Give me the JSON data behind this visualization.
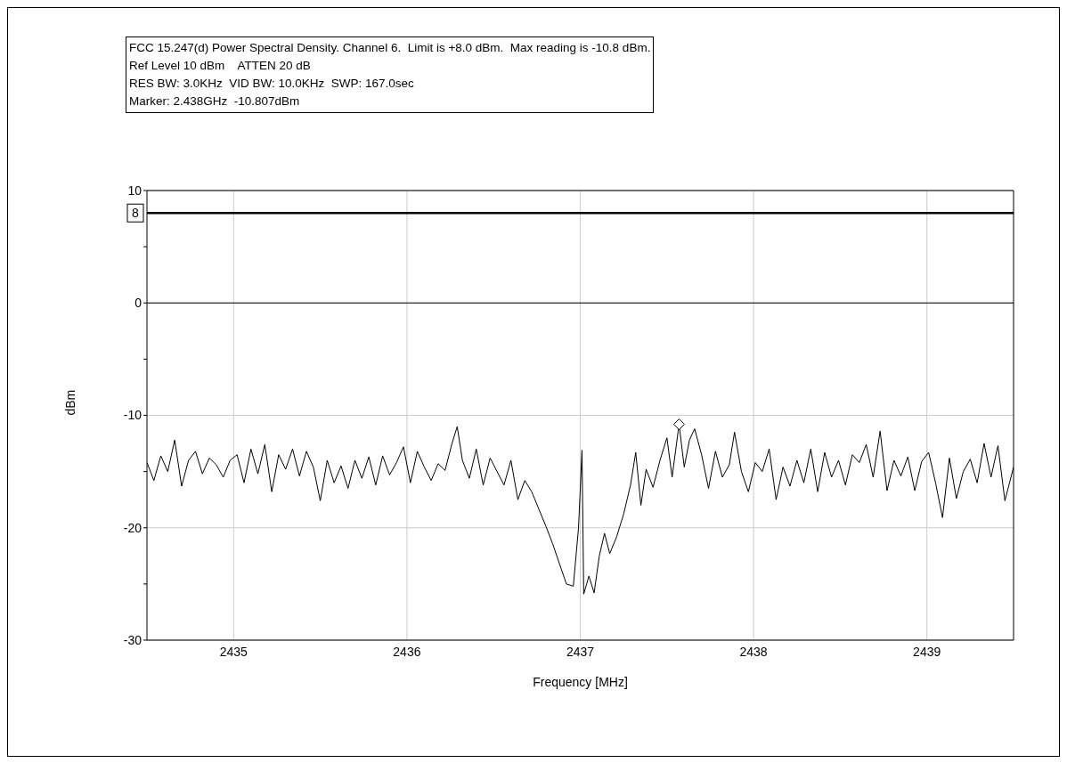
{
  "chart_data": {
    "type": "line",
    "annotations": [
      "FCC 15.247(d) Power Spectral Density. Channel 6.  Limit is +8.0 dBm.  Max reading is -10.8 dBm.",
      "Ref Level 10 dBm    ATTEN 20 dB",
      "RES BW: 3.0KHz  VID BW: 10.0KHz  SWP: 167.0sec",
      "Marker: 2.438GHz  -10.807dBm"
    ],
    "xlabel": "Frequency [MHz]",
    "ylabel": "dBm",
    "xlim": [
      2434.5,
      2439.5
    ],
    "xticks": [
      2435,
      2436,
      2437,
      2438,
      2439
    ],
    "ylim": [
      -30,
      10
    ],
    "yticks": [
      10,
      {
        "value": 5,
        "label": null
      },
      0,
      {
        "value": -5,
        "label": null
      },
      -10,
      {
        "value": -15,
        "label": null
      },
      -20,
      {
        "value": -25,
        "label": null
      },
      -30
    ],
    "grid": true,
    "marker": "none",
    "line_style": "solid",
    "ref_lines": [
      {
        "axis": "y",
        "value": 8,
        "label": "8",
        "color": "#000000"
      },
      {
        "axis": "y",
        "value": 0,
        "color": "#000000"
      }
    ],
    "series": [
      {
        "color": "#000000",
        "x": [
          2434.5,
          2434.54,
          2434.58,
          2434.62,
          2434.66,
          2434.7,
          2434.74,
          2434.78,
          2434.82,
          2434.86,
          2434.9,
          2434.94,
          2434.98,
          2435.02,
          2435.06,
          2435.1,
          2435.14,
          2435.18,
          2435.22,
          2435.26,
          2435.3,
          2435.34,
          2435.38,
          2435.42,
          2435.46,
          2435.5,
          2435.54,
          2435.58,
          2435.62,
          2435.66,
          2435.7,
          2435.74,
          2435.78,
          2435.82,
          2435.86,
          2435.9,
          2435.94,
          2435.98,
          2436.02,
          2436.06,
          2436.1,
          2436.14,
          2436.18,
          2436.22,
          2436.26,
          2436.29,
          2436.32,
          2436.36,
          2436.4,
          2436.44,
          2436.48,
          2436.52,
          2436.56,
          2436.6,
          2436.64,
          2436.68,
          2436.72,
          2436.76,
          2436.8,
          2436.84,
          2436.88,
          2436.92,
          2436.96,
          2436.99,
          2437.01,
          2437.02,
          2437.05,
          2437.08,
          2437.11,
          2437.14,
          2437.17,
          2437.21,
          2437.25,
          2437.29,
          2437.32,
          2437.35,
          2437.38,
          2437.42,
          2437.46,
          2437.5,
          2437.53,
          2437.57,
          2437.6,
          2437.63,
          2437.66,
          2437.7,
          2437.74,
          2437.78,
          2437.82,
          2437.86,
          2437.89,
          2437.93,
          2437.97,
          2438.01,
          2438.05,
          2438.09,
          2438.13,
          2438.17,
          2438.21,
          2438.25,
          2438.29,
          2438.33,
          2438.37,
          2438.41,
          2438.45,
          2438.49,
          2438.53,
          2438.57,
          2438.61,
          2438.65,
          2438.69,
          2438.73,
          2438.77,
          2438.81,
          2438.85,
          2438.89,
          2438.93,
          2438.97,
          2439.01,
          2439.05,
          2439.09,
          2439.13,
          2439.17,
          2439.21,
          2439.25,
          2439.29,
          2439.33,
          2439.37,
          2439.41,
          2439.45,
          2439.5
        ],
        "values": [
          -14.2,
          -15.8,
          -13.6,
          -15.0,
          -12.2,
          -16.3,
          -14.0,
          -13.2,
          -15.2,
          -13.8,
          -14.4,
          -15.5,
          -14.0,
          -13.5,
          -16.0,
          -13.0,
          -15.2,
          -12.6,
          -16.8,
          -13.5,
          -14.8,
          -13.0,
          -15.4,
          -13.2,
          -14.6,
          -17.6,
          -14.0,
          -16.0,
          -14.5,
          -16.5,
          -14.0,
          -15.6,
          -13.7,
          -16.2,
          -13.6,
          -15.3,
          -14.2,
          -12.8,
          -16.0,
          -13.2,
          -14.6,
          -15.8,
          -14.3,
          -14.9,
          -12.5,
          -11.0,
          -14.0,
          -15.6,
          -13.0,
          -16.2,
          -13.8,
          -15.0,
          -16.2,
          -14.0,
          -17.5,
          -15.8,
          -16.8,
          -18.3,
          -19.8,
          -21.4,
          -23.2,
          -25.0,
          -25.2,
          -20.0,
          -13.1,
          -25.9,
          -24.3,
          -25.8,
          -22.5,
          -20.5,
          -22.3,
          -20.8,
          -18.8,
          -16.2,
          -13.3,
          -18.0,
          -14.8,
          -16.4,
          -14.0,
          -12.0,
          -15.5,
          -10.8,
          -14.6,
          -12.2,
          -11.2,
          -13.5,
          -16.5,
          -13.2,
          -15.5,
          -14.4,
          -11.5,
          -15.0,
          -16.8,
          -14.2,
          -15.0,
          -13.0,
          -17.5,
          -14.6,
          -16.3,
          -14.0,
          -16.0,
          -13.0,
          -16.8,
          -13.3,
          -15.5,
          -14.0,
          -16.2,
          -13.5,
          -14.2,
          -12.6,
          -15.5,
          -11.4,
          -16.7,
          -14.0,
          -15.4,
          -13.7,
          -16.7,
          -14.1,
          -13.3,
          -16.0,
          -19.1,
          -13.8,
          -17.4,
          -15.0,
          -13.9,
          -16.0,
          -12.5,
          -15.5,
          -12.7,
          -17.6,
          -14.6
        ]
      },
      {
        "type": "scatter",
        "color": "#000000",
        "marker": "diamond",
        "x": [
          2437.57
        ],
        "values": [
          -10.8
        ]
      }
    ]
  }
}
